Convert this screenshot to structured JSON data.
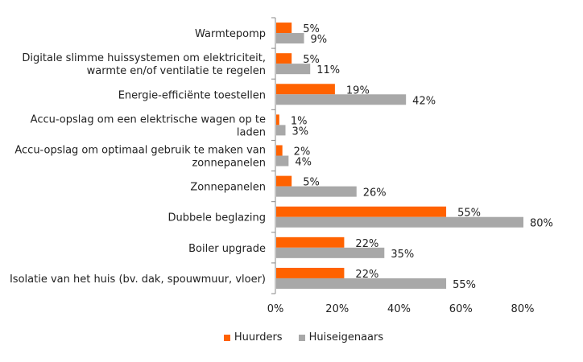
{
  "chart_data": {
    "type": "bar",
    "orientation": "horizontal",
    "categories": [
      [
        "Warmtepomp"
      ],
      [
        "Digitale slimme huissystemen om elektriciteit,",
        "warmte en/of ventilatie te regelen"
      ],
      [
        "Energie-efficiënte toestellen"
      ],
      [
        "Accu-opslag om een elektrische wagen op te",
        "laden"
      ],
      [
        "Accu-opslag om optimaal gebruik te maken van",
        "zonnepanelen"
      ],
      [
        "Zonnepanelen"
      ],
      [
        "Dubbele beglazing"
      ],
      [
        "Boiler upgrade"
      ],
      [
        "Isolatie van het huis (bv. dak, spouwmuur, vloer)"
      ]
    ],
    "series": [
      {
        "name": "Huurders",
        "color": "#ff6200",
        "values": [
          5,
          5,
          19,
          1,
          2,
          5,
          55,
          22,
          22
        ]
      },
      {
        "name": "Huiseigenaars",
        "color": "#a8a8a8",
        "values": [
          9,
          11,
          42,
          3,
          4,
          26,
          80,
          35,
          55
        ]
      }
    ],
    "xlim": [
      0,
      80
    ],
    "xticks": [
      "0%",
      "20%",
      "40%",
      "60%",
      "80%"
    ],
    "legend_position": "bottom",
    "grid": false
  }
}
